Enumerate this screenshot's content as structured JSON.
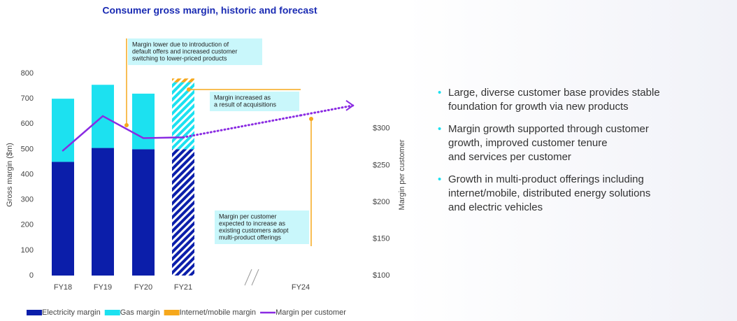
{
  "chart_data": {
    "type": "bar",
    "title": "Consumer gross margin, historic and forecast",
    "ylabel": "Gross margin ($m)",
    "y2label": "Margin per customer",
    "categories": [
      "FY18",
      "FY19",
      "FY20",
      "FY21",
      "FY24"
    ],
    "series": [
      {
        "name": "Electricity margin",
        "color": "#0b1eaa",
        "values": [
          450,
          505,
          500,
          500,
          null
        ]
      },
      {
        "name": "Gas margin",
        "color": "#1ce1f0",
        "values": [
          250,
          250,
          220,
          265,
          null
        ]
      },
      {
        "name": "Internet/mobile margin",
        "color": "#f6a81c",
        "values": [
          null,
          null,
          null,
          15,
          null
        ]
      },
      {
        "name": "Margin per customer",
        "color": "#8a2be2",
        "type": "line",
        "axis": "y2",
        "values": [
          270,
          317,
          287,
          288,
          318
        ],
        "dotted_from": 3
      }
    ],
    "hatched": [
      false,
      false,
      false,
      true,
      false
    ],
    "ylim": [
      0,
      800
    ],
    "yticks": [
      0,
      100,
      200,
      300,
      400,
      500,
      600,
      700,
      800
    ],
    "y2lim": [
      100,
      375
    ],
    "y2ticks": [
      {
        "value": 100,
        "label": "$100"
      },
      {
        "value": 150,
        "label": "$150"
      },
      {
        "value": 200,
        "label": "$200"
      },
      {
        "value": 250,
        "label": "$250"
      },
      {
        "value": 300,
        "label": "$300"
      }
    ],
    "annotations": [
      {
        "lines": [
          "Margin lower due to introduction of",
          "default offers and increased customer",
          "switching to lower-priced products"
        ]
      },
      {
        "lines": [
          "Margin increased as",
          "a result of acquisitions"
        ]
      },
      {
        "lines": [
          "Margin per customer",
          "expected to increase as",
          "existing customers adopt",
          "multi-product offerings"
        ]
      }
    ]
  },
  "bullets": [
    {
      "lines": [
        "Large, diverse customer base provides stable",
        "foundation for growth via new products"
      ]
    },
    {
      "lines": [
        "Margin growth supported through customer",
        "growth, improved customer tenure",
        "and services per customer"
      ]
    },
    {
      "lines": [
        "Growth in multi-product offerings including",
        "internet/mobile, distributed energy solutions",
        "and electric vehicles"
      ]
    }
  ]
}
